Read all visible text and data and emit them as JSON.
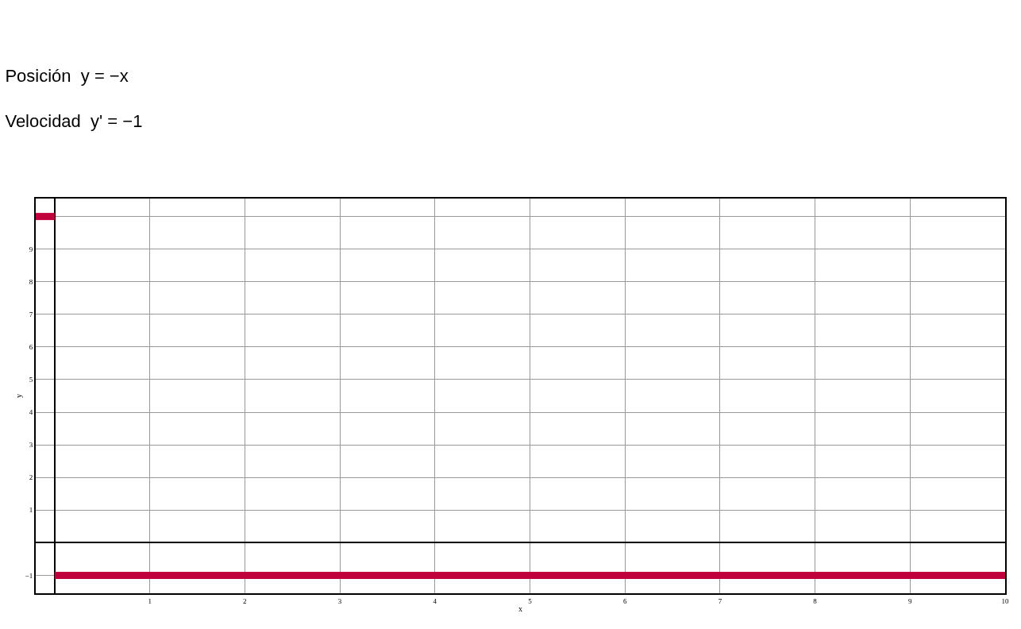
{
  "chart_data": {
    "type": "line",
    "title": "Posición  y = −x",
    "subtitle": "Velocidad  y' = −1",
    "xlabel": "x",
    "ylabel": "y",
    "series": [
      {
        "color": "#c0003c",
        "x": [
          0,
          10
        ],
        "values": [
          -1,
          -1
        ]
      },
      {
        "color": "#c0003c",
        "x": [
          -0.2,
          0
        ],
        "values": [
          10,
          10
        ]
      }
    ],
    "xlim": [
      -0.2,
      10
    ],
    "ylim": [
      -1.55,
      10.55
    ],
    "xticks": [
      {
        "value": 0,
        "label": null
      },
      1,
      2,
      3,
      4,
      5,
      6,
      7,
      8,
      9,
      10
    ],
    "yticks": [
      -1,
      {
        "value": 0,
        "label": null
      },
      1,
      2,
      3,
      4,
      5,
      6,
      7,
      8,
      9,
      {
        "value": 10,
        "label": null
      }
    ],
    "grid": true,
    "marker": "none",
    "line_style": "solid"
  }
}
